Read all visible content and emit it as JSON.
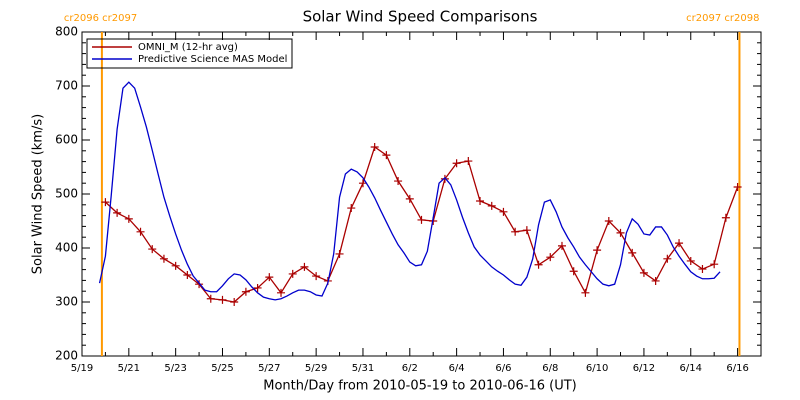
{
  "chart_data": {
    "type": "line",
    "title": "Solar Wind Speed Comparisons",
    "xlabel": "Month/Day from 2010-05-19 to 2010-06-16 (UT)",
    "ylabel": "Solar Wind Speed (km/s)",
    "xlim": [
      0,
      29
    ],
    "xticks": [
      {
        "value": 0,
        "label": "5/19"
      },
      {
        "value": 2,
        "label": "5/21"
      },
      {
        "value": 4,
        "label": "5/23"
      },
      {
        "value": 6,
        "label": "5/25"
      },
      {
        "value": 8,
        "label": "5/27"
      },
      {
        "value": 10,
        "label": "5/29"
      },
      {
        "value": 12,
        "label": "5/31"
      },
      {
        "value": 14,
        "label": "6/2"
      },
      {
        "value": 16,
        "label": "6/4"
      },
      {
        "value": 18,
        "label": "6/6"
      },
      {
        "value": 20,
        "label": "6/8"
      },
      {
        "value": 22,
        "label": "6/10"
      },
      {
        "value": 24,
        "label": "6/12"
      },
      {
        "value": 26,
        "label": "6/14"
      },
      {
        "value": 28,
        "label": "6/16"
      }
    ],
    "ylim": [
      200,
      800
    ],
    "yticks": [
      200,
      300,
      400,
      500,
      600,
      700,
      800
    ],
    "legend": "upper left",
    "markers": [
      {
        "x": 0.85,
        "label": "cr2096 cr2097",
        "color": "#ff9900"
      },
      {
        "x": 28.08,
        "label": "cr2097 cr2098",
        "color": "#ff9900"
      }
    ],
    "series": [
      {
        "name": "OMNI_M (12-hr avg)",
        "color": "#aa0000",
        "x": [
          1,
          1.5,
          2,
          2.5,
          3,
          3.5,
          4,
          4.5,
          5,
          5.5,
          6,
          6.5,
          7,
          7.5,
          8,
          8.5,
          9,
          9.5,
          10,
          10.5,
          11,
          11.5,
          12,
          12.5,
          13,
          13.5,
          14,
          14.5,
          15,
          15.5,
          16,
          16.5,
          17,
          17.5,
          18,
          18.5,
          19,
          19.5,
          20,
          20.5,
          21,
          21.5,
          22,
          22.5,
          23,
          23.5,
          24,
          24.5,
          25,
          25.5,
          26,
          26.5,
          27,
          27.5,
          28
        ],
        "values": [
          485,
          465,
          454,
          430,
          398,
          380,
          367,
          350,
          333,
          306,
          304,
          300,
          319,
          326,
          346,
          317,
          352,
          365,
          348,
          339,
          389,
          474,
          520,
          587,
          572,
          524,
          491,
          452,
          450,
          528,
          557,
          561,
          487,
          478,
          467,
          430,
          433,
          369,
          383,
          404,
          357,
          317,
          396,
          450,
          428,
          391,
          354,
          339,
          380,
          409,
          376,
          361,
          370,
          456,
          513
        ]
      },
      {
        "name": "Predictive Science MAS Model",
        "color": "#0000cc",
        "x": [
          0.75,
          1,
          1.25,
          1.5,
          1.75,
          2,
          2.25,
          2.5,
          2.75,
          3,
          3.25,
          3.5,
          3.75,
          4,
          4.25,
          4.5,
          4.75,
          5,
          5.25,
          5.5,
          5.75,
          6,
          6.25,
          6.5,
          6.75,
          7,
          7.25,
          7.5,
          7.75,
          8,
          8.25,
          8.5,
          8.75,
          9,
          9.25,
          9.5,
          9.75,
          10,
          10.25,
          10.5,
          10.75,
          11,
          11.25,
          11.5,
          11.75,
          12,
          12.25,
          12.5,
          12.75,
          13,
          13.25,
          13.5,
          13.75,
          14,
          14.25,
          14.5,
          14.75,
          15,
          15.25,
          15.5,
          15.75,
          16,
          16.25,
          16.5,
          16.75,
          17,
          17.25,
          17.5,
          17.75,
          18,
          18.25,
          18.5,
          18.75,
          19,
          19.25,
          19.5,
          19.75,
          20,
          20.25,
          20.5,
          20.75,
          21,
          21.25,
          21.5,
          21.75,
          22,
          22.25,
          22.5,
          22.75,
          23,
          23.25,
          23.5,
          23.75,
          24,
          24.25,
          24.5,
          24.75,
          25,
          25.25,
          25.5,
          25.75,
          26,
          26.25,
          26.5,
          26.75,
          27,
          27.25
        ],
        "values": [
          335,
          385,
          498,
          620,
          696,
          707,
          696,
          661,
          624,
          581,
          537,
          494,
          459,
          426,
          396,
          370,
          348,
          335,
          322,
          319,
          319,
          330,
          343,
          352,
          350,
          341,
          328,
          317,
          309,
          306,
          304,
          306,
          311,
          317,
          322,
          322,
          319,
          313,
          311,
          335,
          389,
          494,
          537,
          546,
          541,
          530,
          513,
          493,
          470,
          448,
          426,
          406,
          391,
          374,
          367,
          369,
          394,
          456,
          520,
          530,
          517,
          489,
          457,
          428,
          402,
          387,
          376,
          365,
          357,
          350,
          341,
          333,
          331,
          346,
          380,
          443,
          485,
          489,
          467,
          439,
          419,
          402,
          383,
          369,
          356,
          343,
          333,
          330,
          333,
          369,
          428,
          454,
          444,
          426,
          424,
          439,
          439,
          424,
          402,
          385,
          370,
          356,
          348,
          343,
          343,
          344,
          356
        ]
      }
    ]
  }
}
